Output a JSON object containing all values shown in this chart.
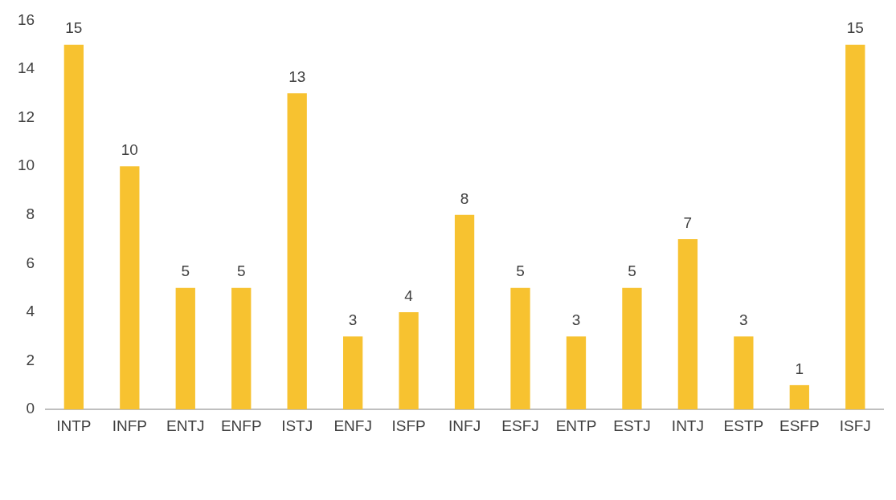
{
  "chart_data": {
    "type": "bar",
    "categories": [
      "INTP",
      "INFP",
      "ENTJ",
      "ENFP",
      "ISTJ",
      "ENFJ",
      "ISFP",
      "INFJ",
      "ESFJ",
      "ENTP",
      "ESTJ",
      "INTJ",
      "ESTP",
      "ESFP",
      "ISFJ"
    ],
    "values": [
      15,
      10,
      5,
      5,
      13,
      3,
      4,
      8,
      5,
      3,
      5,
      7,
      3,
      1,
      15
    ],
    "color": "#f7c230",
    "ylim": [
      0,
      16
    ],
    "yticks": [
      0,
      2,
      4,
      6,
      8,
      10,
      12,
      14,
      16
    ],
    "data_labels": true,
    "grid": false,
    "legend": false
  }
}
